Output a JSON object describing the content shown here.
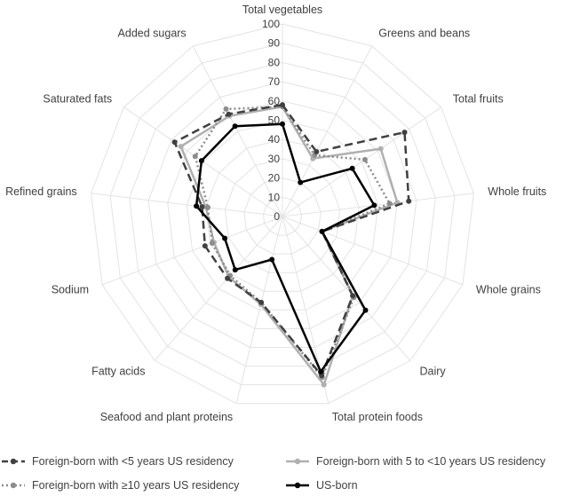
{
  "chart_data": {
    "type": "radar",
    "title": "",
    "axes": [
      "Total vegetables",
      "Greens and beans",
      "Total fruits",
      "Whole fruits",
      "Whole grains",
      "Dairy",
      "Total protein foods",
      "Seafood and plant proteins",
      "Fatty acids",
      "Sodium",
      "Refined grains",
      "Saturated fats",
      "Added sugars"
    ],
    "rlim": [
      0,
      100
    ],
    "ticks": [
      "0",
      "10",
      "20",
      "30",
      "40",
      "50",
      "60",
      "70",
      "80",
      "90",
      "100"
    ],
    "grid": true,
    "legend_position": "bottom",
    "series": [
      {
        "name": "Foreign-born with <5 years US residency",
        "color": "#404040",
        "style": "dashed",
        "values": [
          58,
          38,
          77,
          66,
          22,
          55,
          85,
          46,
          43,
          43,
          42,
          68,
          60
        ]
      },
      {
        "name": "Foreign-born with 5 to <10 years US residency",
        "color": "#b0b0b0",
        "style": "solid",
        "values": [
          57,
          34,
          62,
          60,
          22,
          55,
          90,
          47,
          42,
          38,
          40,
          64,
          59
        ]
      },
      {
        "name": "Foreign-born with ≥10 years US residency",
        "color": "#8c8c8c",
        "style": "dotted",
        "values": [
          57,
          36,
          52,
          56,
          22,
          56,
          86,
          46,
          41,
          39,
          39,
          55,
          63
        ]
      },
      {
        "name": "US-born",
        "color": "#000000",
        "style": "solid",
        "values": [
          48,
          20,
          44,
          48,
          22,
          65,
          83,
          23,
          37,
          32,
          45,
          51,
          53
        ]
      }
    ]
  },
  "legend": {
    "items": [
      {
        "label": "Foreign-born with <5 years US residency"
      },
      {
        "label": "Foreign-born with 5 to <10 years US residency"
      },
      {
        "label": "Foreign-born with ≥10 years US residency"
      },
      {
        "label": "US-born"
      }
    ]
  }
}
